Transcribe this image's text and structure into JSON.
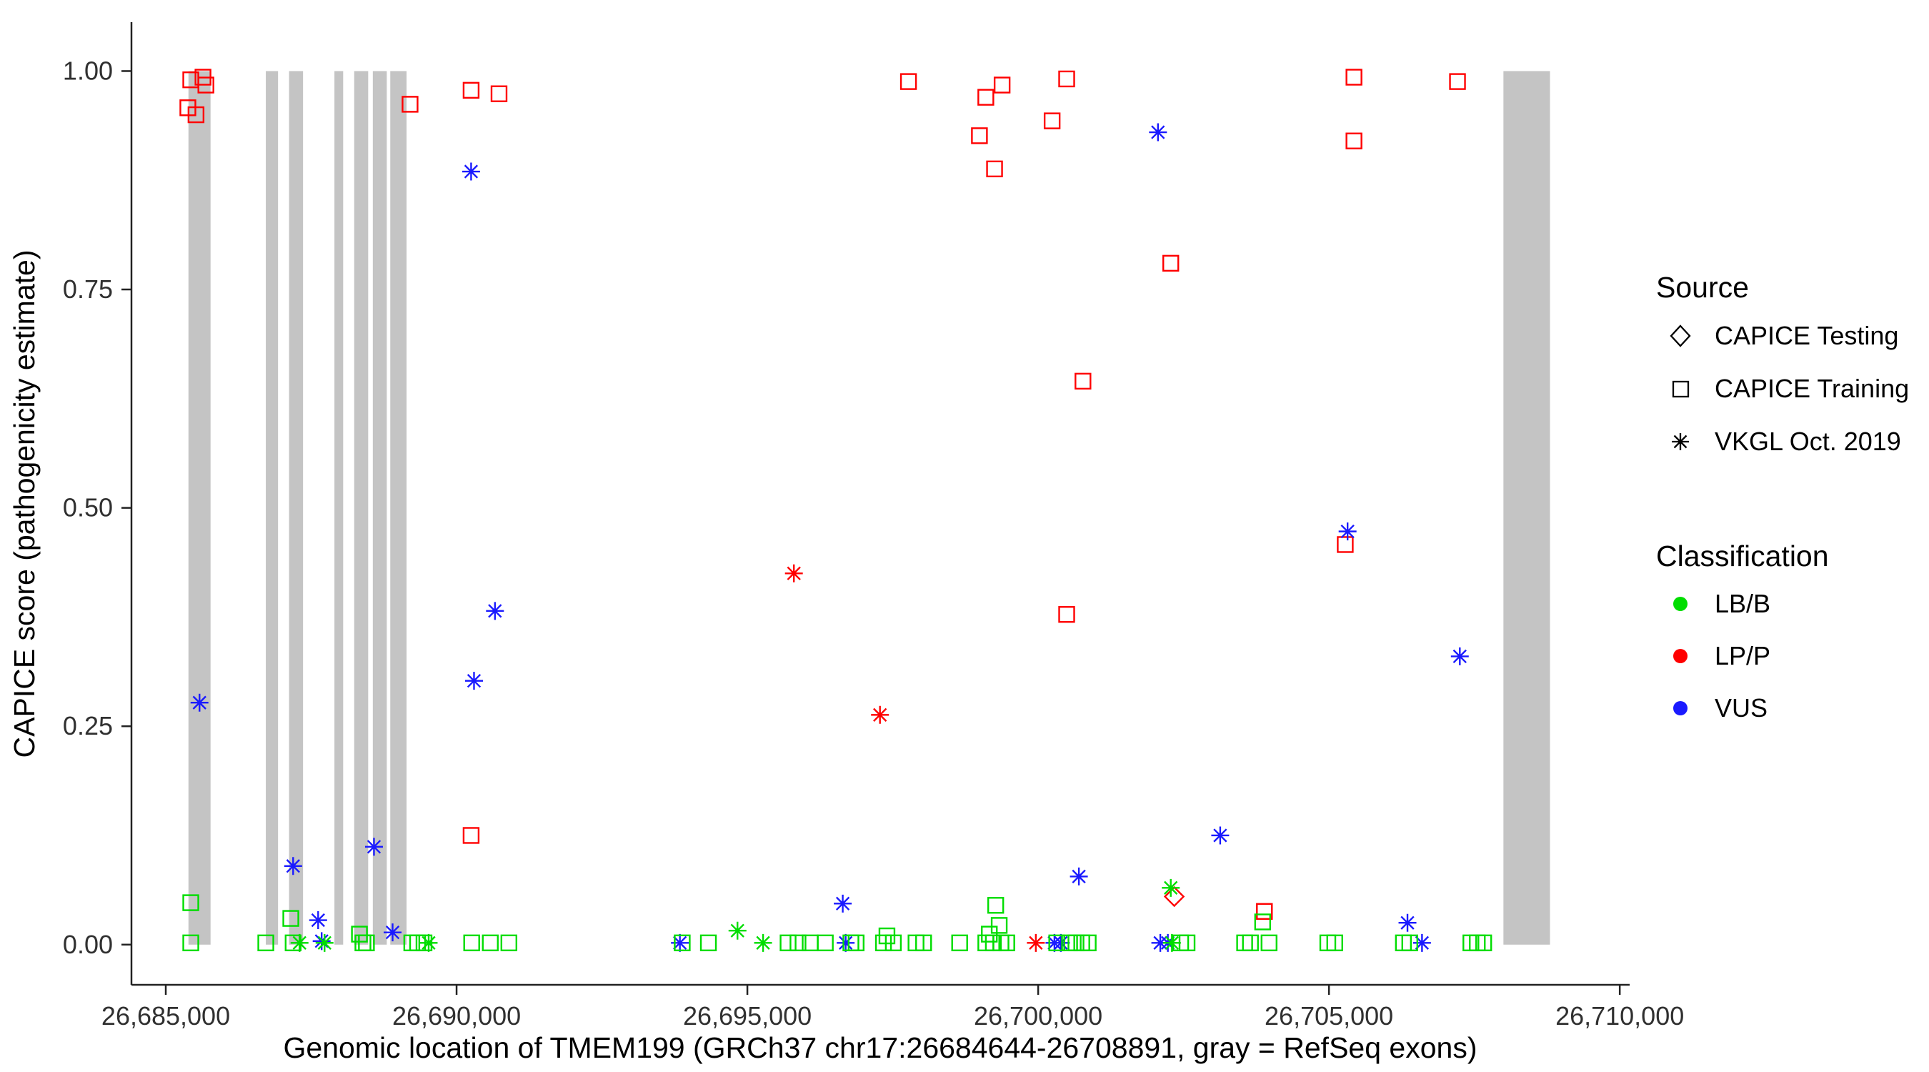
{
  "legend": {
    "source": {
      "title": "Source",
      "items": [
        {
          "label": "CAPICE Testing",
          "shape": "diamond"
        },
        {
          "label": "CAPICE Training",
          "shape": "square"
        },
        {
          "label": "VKGL Oct. 2019",
          "shape": "asterisk"
        }
      ]
    },
    "classification": {
      "title": "Classification",
      "items": [
        {
          "label": "LB/B",
          "color": "#00DD00"
        },
        {
          "label": "LP/P",
          "color": "#FF0000"
        },
        {
          "label": "VUS",
          "color": "#1A1AFF"
        }
      ]
    }
  },
  "chart_data": {
    "type": "scatter",
    "title": "",
    "xlabel": "Genomic location of TMEM199 (GRCh37 chr17:26684644-26708891, gray = RefSeq exons)",
    "ylabel": "CAPICE score (pathogenicity estimate)",
    "xlim": [
      26684410,
      26710170
    ],
    "ylim": [
      -0.046,
      1.056
    ],
    "x_ticks": [
      26685000,
      26690000,
      26695000,
      26700000,
      26705000,
      26710000
    ],
    "x_tick_labels": [
      "26,685,000",
      "26,690,000",
      "26,695,000",
      "26,700,000",
      "26,705,000",
      "26,710,000"
    ],
    "y_ticks": [
      0,
      0.25,
      0.5,
      0.75,
      1
    ],
    "y_tick_labels": [
      "0.00",
      "0.25",
      "0.50",
      "0.75",
      "1.00"
    ],
    "grid": "off",
    "legend_position": "right",
    "exon_color": "#C4C4C4",
    "exons": [
      [
        26685390,
        26685770
      ],
      [
        26686720,
        26686930
      ],
      [
        26687120,
        26687360
      ],
      [
        26687900,
        26688050
      ],
      [
        26688240,
        26688480
      ],
      [
        26688560,
        26688800
      ],
      [
        26688860,
        26689140
      ],
      [
        26708000,
        26708800
      ]
    ],
    "colors": {
      "LB/B": "#00DD00",
      "LP/P": "#FF0000",
      "VUS": "#1A1AFF"
    },
    "shapes": {
      "CAPICE Testing": "diamond",
      "CAPICE Training": "square",
      "VKGL Oct. 2019": "asterisk"
    },
    "points": [
      {
        "x": 26685430,
        "y": 0.99,
        "source": "CAPICE Training",
        "cls": "LP/P"
      },
      {
        "x": 26685640,
        "y": 0.993,
        "source": "CAPICE Training",
        "cls": "LP/P"
      },
      {
        "x": 26685690,
        "y": 0.984,
        "source": "CAPICE Training",
        "cls": "LP/P"
      },
      {
        "x": 26685380,
        "y": 0.958,
        "source": "CAPICE Training",
        "cls": "LP/P"
      },
      {
        "x": 26685520,
        "y": 0.95,
        "source": "CAPICE Training",
        "cls": "LP/P"
      },
      {
        "x": 26689200,
        "y": 0.962,
        "source": "CAPICE Training",
        "cls": "LP/P"
      },
      {
        "x": 26690250,
        "y": 0.978,
        "source": "CAPICE Training",
        "cls": "LP/P"
      },
      {
        "x": 26690730,
        "y": 0.974,
        "source": "CAPICE Training",
        "cls": "LP/P"
      },
      {
        "x": 26690250,
        "y": 0.125,
        "source": "CAPICE Training",
        "cls": "LP/P"
      },
      {
        "x": 26697770,
        "y": 0.988,
        "source": "CAPICE Training",
        "cls": "LP/P"
      },
      {
        "x": 26698990,
        "y": 0.926,
        "source": "CAPICE Training",
        "cls": "LP/P"
      },
      {
        "x": 26699100,
        "y": 0.97,
        "source": "CAPICE Training",
        "cls": "LP/P"
      },
      {
        "x": 26699250,
        "y": 0.888,
        "source": "CAPICE Training",
        "cls": "LP/P"
      },
      {
        "x": 26699380,
        "y": 0.984,
        "source": "CAPICE Training",
        "cls": "LP/P"
      },
      {
        "x": 26700240,
        "y": 0.943,
        "source": "CAPICE Training",
        "cls": "LP/P"
      },
      {
        "x": 26700490,
        "y": 0.991,
        "source": "CAPICE Training",
        "cls": "LP/P"
      },
      {
        "x": 26700490,
        "y": 0.378,
        "source": "CAPICE Training",
        "cls": "LP/P"
      },
      {
        "x": 26700770,
        "y": 0.645,
        "source": "CAPICE Training",
        "cls": "LP/P"
      },
      {
        "x": 26702280,
        "y": 0.78,
        "source": "CAPICE Training",
        "cls": "LP/P"
      },
      {
        "x": 26703890,
        "y": 0.038,
        "source": "CAPICE Training",
        "cls": "LP/P"
      },
      {
        "x": 26705280,
        "y": 0.458,
        "source": "CAPICE Training",
        "cls": "LP/P"
      },
      {
        "x": 26705430,
        "y": 0.993,
        "source": "CAPICE Training",
        "cls": "LP/P"
      },
      {
        "x": 26705430,
        "y": 0.92,
        "source": "CAPICE Training",
        "cls": "LP/P"
      },
      {
        "x": 26707210,
        "y": 0.988,
        "source": "CAPICE Training",
        "cls": "LP/P"
      },
      {
        "x": 26702340,
        "y": 0.055,
        "source": "CAPICE Testing",
        "cls": "LP/P"
      },
      {
        "x": 26695800,
        "y": 0.425,
        "source": "VKGL Oct. 2019",
        "cls": "LP/P"
      },
      {
        "x": 26697280,
        "y": 0.263,
        "source": "VKGL Oct. 2019",
        "cls": "LP/P"
      },
      {
        "x": 26699960,
        "y": 0.002,
        "source": "VKGL Oct. 2019",
        "cls": "LP/P"
      },
      {
        "x": 26685580,
        "y": 0.277,
        "source": "VKGL Oct. 2019",
        "cls": "VUS"
      },
      {
        "x": 26687190,
        "y": 0.09,
        "source": "VKGL Oct. 2019",
        "cls": "VUS"
      },
      {
        "x": 26687620,
        "y": 0.028,
        "source": "VKGL Oct. 2019",
        "cls": "VUS"
      },
      {
        "x": 26687680,
        "y": 0.004,
        "source": "VKGL Oct. 2019",
        "cls": "VUS"
      },
      {
        "x": 26688580,
        "y": 0.112,
        "source": "VKGL Oct. 2019",
        "cls": "VUS"
      },
      {
        "x": 26688900,
        "y": 0.014,
        "source": "VKGL Oct. 2019",
        "cls": "VUS"
      },
      {
        "x": 26690250,
        "y": 0.885,
        "source": "VKGL Oct. 2019",
        "cls": "VUS"
      },
      {
        "x": 26690300,
        "y": 0.302,
        "source": "VKGL Oct. 2019",
        "cls": "VUS"
      },
      {
        "x": 26690660,
        "y": 0.382,
        "source": "VKGL Oct. 2019",
        "cls": "VUS"
      },
      {
        "x": 26693840,
        "y": 0.002,
        "source": "VKGL Oct. 2019",
        "cls": "VUS"
      },
      {
        "x": 26696640,
        "y": 0.047,
        "source": "VKGL Oct. 2019",
        "cls": "VUS"
      },
      {
        "x": 26696690,
        "y": 0.002,
        "source": "VKGL Oct. 2019",
        "cls": "VUS"
      },
      {
        "x": 26700280,
        "y": 0.002,
        "source": "VKGL Oct. 2019",
        "cls": "VUS"
      },
      {
        "x": 26700390,
        "y": 0.002,
        "source": "VKGL Oct. 2019",
        "cls": "VUS"
      },
      {
        "x": 26700700,
        "y": 0.078,
        "source": "VKGL Oct. 2019",
        "cls": "VUS"
      },
      {
        "x": 26702060,
        "y": 0.93,
        "source": "VKGL Oct. 2019",
        "cls": "VUS"
      },
      {
        "x": 26702100,
        "y": 0.002,
        "source": "VKGL Oct. 2019",
        "cls": "VUS"
      },
      {
        "x": 26702230,
        "y": 0.002,
        "source": "VKGL Oct. 2019",
        "cls": "VUS"
      },
      {
        "x": 26703130,
        "y": 0.125,
        "source": "VKGL Oct. 2019",
        "cls": "VUS"
      },
      {
        "x": 26705320,
        "y": 0.473,
        "source": "VKGL Oct. 2019",
        "cls": "VUS"
      },
      {
        "x": 26706350,
        "y": 0.025,
        "source": "VKGL Oct. 2019",
        "cls": "VUS"
      },
      {
        "x": 26706600,
        "y": 0.002,
        "source": "VKGL Oct. 2019",
        "cls": "VUS"
      },
      {
        "x": 26707250,
        "y": 0.33,
        "source": "VKGL Oct. 2019",
        "cls": "VUS"
      },
      {
        "x": 26687300,
        "y": 0.002,
        "source": "VKGL Oct. 2019",
        "cls": "LB/B"
      },
      {
        "x": 26687730,
        "y": 0.002,
        "source": "VKGL Oct. 2019",
        "cls": "LB/B"
      },
      {
        "x": 26689520,
        "y": 0.002,
        "source": "VKGL Oct. 2019",
        "cls": "LB/B"
      },
      {
        "x": 26694830,
        "y": 0.016,
        "source": "VKGL Oct. 2019",
        "cls": "LB/B"
      },
      {
        "x": 26695270,
        "y": 0.002,
        "source": "VKGL Oct. 2019",
        "cls": "LB/B"
      },
      {
        "x": 26702280,
        "y": 0.065,
        "source": "VKGL Oct. 2019",
        "cls": "LB/B"
      },
      {
        "x": 26702300,
        "y": 0.002,
        "source": "VKGL Oct. 2019",
        "cls": "LB/B"
      },
      {
        "x": 26685430,
        "y": 0.048,
        "source": "CAPICE Training",
        "cls": "LB/B"
      },
      {
        "x": 26685430,
        "y": 0.002,
        "source": "CAPICE Training",
        "cls": "LB/B"
      },
      {
        "x": 26686720,
        "y": 0.002,
        "source": "CAPICE Training",
        "cls": "LB/B"
      },
      {
        "x": 26687150,
        "y": 0.03,
        "source": "CAPICE Training",
        "cls": "LB/B"
      },
      {
        "x": 26687190,
        "y": 0.002,
        "source": "CAPICE Training",
        "cls": "LB/B"
      },
      {
        "x": 26688330,
        "y": 0.012,
        "source": "CAPICE Training",
        "cls": "LB/B"
      },
      {
        "x": 26688390,
        "y": 0.002,
        "source": "CAPICE Training",
        "cls": "LB/B"
      },
      {
        "x": 26688450,
        "y": 0.002,
        "source": "CAPICE Training",
        "cls": "LB/B"
      },
      {
        "x": 26689230,
        "y": 0.002,
        "source": "CAPICE Training",
        "cls": "LB/B"
      },
      {
        "x": 26689330,
        "y": 0.002,
        "source": "CAPICE Training",
        "cls": "LB/B"
      },
      {
        "x": 26689440,
        "y": 0.002,
        "source": "CAPICE Training",
        "cls": "LB/B"
      },
      {
        "x": 26690260,
        "y": 0.002,
        "source": "CAPICE Training",
        "cls": "LB/B"
      },
      {
        "x": 26690580,
        "y": 0.002,
        "source": "CAPICE Training",
        "cls": "LB/B"
      },
      {
        "x": 26690900,
        "y": 0.002,
        "source": "CAPICE Training",
        "cls": "LB/B"
      },
      {
        "x": 26693880,
        "y": 0.002,
        "source": "CAPICE Training",
        "cls": "LB/B"
      },
      {
        "x": 26694330,
        "y": 0.002,
        "source": "CAPICE Training",
        "cls": "LB/B"
      },
      {
        "x": 26695700,
        "y": 0.002,
        "source": "CAPICE Training",
        "cls": "LB/B"
      },
      {
        "x": 26695870,
        "y": 0.002,
        "source": "CAPICE Training",
        "cls": "LB/B"
      },
      {
        "x": 26696080,
        "y": 0.002,
        "source": "CAPICE Training",
        "cls": "LB/B"
      },
      {
        "x": 26696340,
        "y": 0.002,
        "source": "CAPICE Training",
        "cls": "LB/B"
      },
      {
        "x": 26696780,
        "y": 0.002,
        "source": "CAPICE Training",
        "cls": "LB/B"
      },
      {
        "x": 26696870,
        "y": 0.002,
        "source": "CAPICE Training",
        "cls": "LB/B"
      },
      {
        "x": 26697340,
        "y": 0.002,
        "source": "CAPICE Training",
        "cls": "LB/B"
      },
      {
        "x": 26697400,
        "y": 0.01,
        "source": "CAPICE Training",
        "cls": "LB/B"
      },
      {
        "x": 26697510,
        "y": 0.002,
        "source": "CAPICE Training",
        "cls": "LB/B"
      },
      {
        "x": 26697900,
        "y": 0.002,
        "source": "CAPICE Training",
        "cls": "LB/B"
      },
      {
        "x": 26698030,
        "y": 0.002,
        "source": "CAPICE Training",
        "cls": "LB/B"
      },
      {
        "x": 26698650,
        "y": 0.002,
        "source": "CAPICE Training",
        "cls": "LB/B"
      },
      {
        "x": 26699100,
        "y": 0.002,
        "source": "CAPICE Training",
        "cls": "LB/B"
      },
      {
        "x": 26699160,
        "y": 0.012,
        "source": "CAPICE Training",
        "cls": "LB/B"
      },
      {
        "x": 26699230,
        "y": 0.002,
        "source": "CAPICE Training",
        "cls": "LB/B"
      },
      {
        "x": 26699270,
        "y": 0.045,
        "source": "CAPICE Training",
        "cls": "LB/B"
      },
      {
        "x": 26699330,
        "y": 0.022,
        "source": "CAPICE Training",
        "cls": "LB/B"
      },
      {
        "x": 26699360,
        "y": 0.002,
        "source": "CAPICE Training",
        "cls": "LB/B"
      },
      {
        "x": 26699460,
        "y": 0.002,
        "source": "CAPICE Training",
        "cls": "LB/B"
      },
      {
        "x": 26700320,
        "y": 0.002,
        "source": "CAPICE Training",
        "cls": "LB/B"
      },
      {
        "x": 26700540,
        "y": 0.002,
        "source": "CAPICE Training",
        "cls": "LB/B"
      },
      {
        "x": 26700650,
        "y": 0.002,
        "source": "CAPICE Training",
        "cls": "LB/B"
      },
      {
        "x": 26700750,
        "y": 0.002,
        "source": "CAPICE Training",
        "cls": "LB/B"
      },
      {
        "x": 26700860,
        "y": 0.002,
        "source": "CAPICE Training",
        "cls": "LB/B"
      },
      {
        "x": 26702450,
        "y": 0.002,
        "source": "CAPICE Training",
        "cls": "LB/B"
      },
      {
        "x": 26702560,
        "y": 0.002,
        "source": "CAPICE Training",
        "cls": "LB/B"
      },
      {
        "x": 26703550,
        "y": 0.002,
        "source": "CAPICE Training",
        "cls": "LB/B"
      },
      {
        "x": 26703650,
        "y": 0.002,
        "source": "CAPICE Training",
        "cls": "LB/B"
      },
      {
        "x": 26703860,
        "y": 0.026,
        "source": "CAPICE Training",
        "cls": "LB/B"
      },
      {
        "x": 26703970,
        "y": 0.002,
        "source": "CAPICE Training",
        "cls": "LB/B"
      },
      {
        "x": 26704980,
        "y": 0.002,
        "source": "CAPICE Training",
        "cls": "LB/B"
      },
      {
        "x": 26705100,
        "y": 0.002,
        "source": "CAPICE Training",
        "cls": "LB/B"
      },
      {
        "x": 26706280,
        "y": 0.002,
        "source": "CAPICE Training",
        "cls": "LB/B"
      },
      {
        "x": 26706390,
        "y": 0.002,
        "source": "CAPICE Training",
        "cls": "LB/B"
      },
      {
        "x": 26707440,
        "y": 0.002,
        "source": "CAPICE Training",
        "cls": "LB/B"
      },
      {
        "x": 26707550,
        "y": 0.002,
        "source": "CAPICE Training",
        "cls": "LB/B"
      },
      {
        "x": 26707660,
        "y": 0.002,
        "source": "CAPICE Training",
        "cls": "LB/B"
      }
    ]
  }
}
